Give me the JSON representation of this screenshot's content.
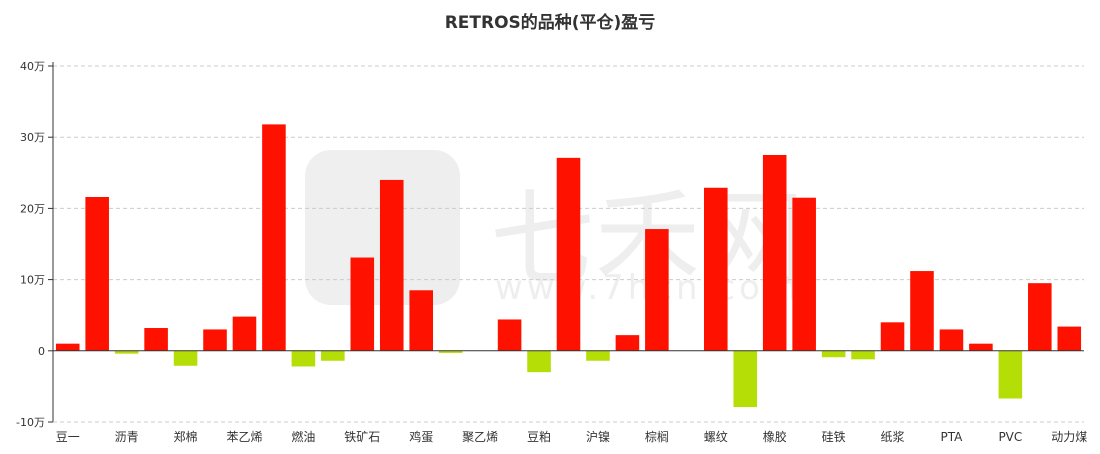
{
  "chart_data": {
    "type": "bar",
    "title": "RETROS的品种(平仓)盈亏",
    "xlabel": "",
    "ylabel": "",
    "ylim": [
      -10,
      40
    ],
    "y_ticks": [
      "-10万",
      "0",
      "10万",
      "20万",
      "30万",
      "40万"
    ],
    "y_tick_values": [
      -10,
      0,
      10,
      20,
      30,
      40
    ],
    "unit": "万",
    "grid": true,
    "colors": {
      "positive": "#ff1100",
      "negative": "#b5de06"
    },
    "categories": [
      "豆一",
      "",
      "沥青",
      "",
      "郑棉",
      "",
      "苯乙烯",
      "",
      "燃油",
      "",
      "铁矿石",
      "",
      "鸡蛋",
      "",
      "聚乙烯",
      "",
      "豆粕",
      "",
      "沪镍",
      "",
      "棕榈",
      "",
      "螺纹",
      "",
      "橡胶",
      "",
      "硅铁",
      "",
      "纸浆",
      "",
      "PTA",
      "",
      "PVC",
      "",
      "动力煤"
    ],
    "values": [
      1.0,
      21.6,
      -0.4,
      3.2,
      -2.1,
      3.0,
      4.8,
      31.8,
      -2.2,
      -1.4,
      13.1,
      24.0,
      8.5,
      -0.3,
      0,
      4.4,
      -3.0,
      27.1,
      -1.4,
      2.2,
      17.1,
      0,
      22.9,
      -7.9,
      27.5,
      21.5,
      -0.9,
      -1.2,
      4.0,
      11.2,
      3.0,
      1.0,
      -6.7,
      9.5,
      3.4
    ]
  },
  "watermark": {
    "text": "七禾网",
    "url": "www.7hcn.com"
  }
}
